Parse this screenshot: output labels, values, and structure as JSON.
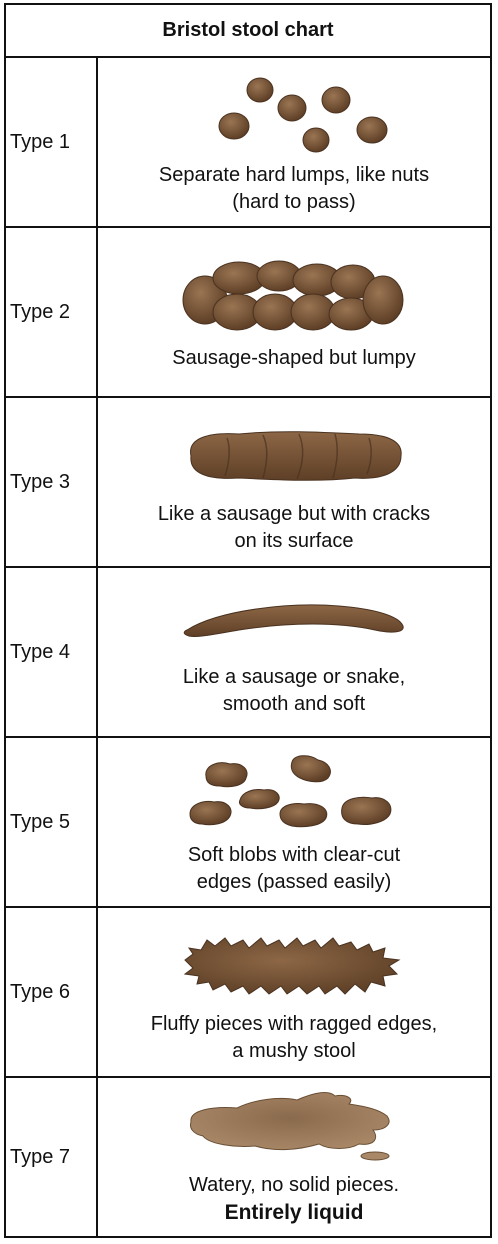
{
  "title": "Bristol stool chart",
  "colors": {
    "stool": "#7a5738",
    "stool_dark": "#5a3d24",
    "stool_light": "#9a7553",
    "border": "#111111"
  },
  "rows": [
    {
      "type": "Type 1",
      "line1": "Separate hard lumps, like nuts",
      "line2": "(hard to pass)",
      "illustration": "separate-lumps-icon"
    },
    {
      "type": "Type 2",
      "line1": "Sausage-shaped but lumpy",
      "line2": "",
      "illustration": "lumpy-sausage-icon"
    },
    {
      "type": "Type 3",
      "line1": "Like a sausage but with cracks",
      "line2": "on its surface",
      "illustration": "cracked-sausage-icon"
    },
    {
      "type": "Type 4",
      "line1": "Like a sausage or snake,",
      "line2": "smooth and soft",
      "illustration": "smooth-snake-icon"
    },
    {
      "type": "Type 5",
      "line1": "Soft blobs with clear-cut",
      "line2": "edges (passed easily)",
      "illustration": "soft-blobs-icon"
    },
    {
      "type": "Type 6",
      "line1": "Fluffy pieces with ragged edges,",
      "line2": "a mushy stool",
      "illustration": "fluffy-pieces-icon"
    },
    {
      "type": "Type 7",
      "line1": "Watery, no solid pieces.",
      "line2": "Entirely liquid",
      "illustration": "watery-puddle-icon"
    }
  ]
}
